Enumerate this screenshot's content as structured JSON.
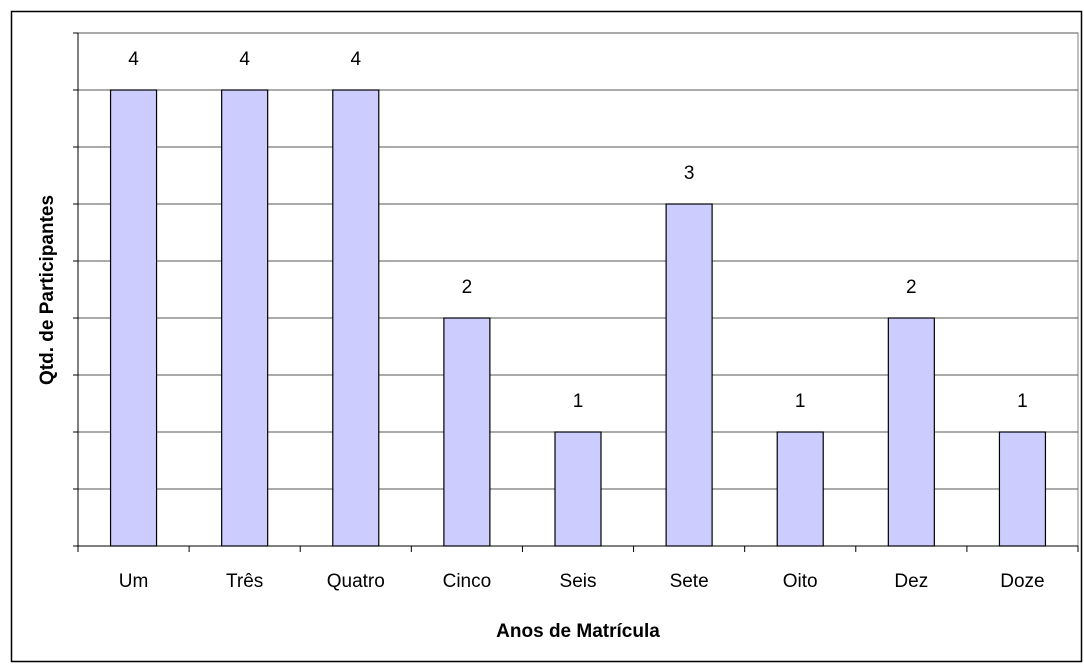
{
  "chart_data": {
    "type": "bar",
    "x_label": "Anos de Matrícula",
    "y_label": "Qtd. de Participantes",
    "categories": [
      "Um",
      "Três",
      "Quatro",
      "Cinco",
      "Seis",
      "Sete",
      "Oito",
      "Dez",
      "Doze"
    ],
    "values": [
      4,
      4,
      4,
      2,
      1,
      3,
      1,
      2,
      1
    ],
    "color": "#ccccff",
    "ylim": [
      0,
      4.5
    ],
    "yticks": [
      0,
      0.5,
      1,
      1.5,
      2,
      2.5,
      3,
      3.5,
      4,
      4.5
    ],
    "grid": true
  }
}
